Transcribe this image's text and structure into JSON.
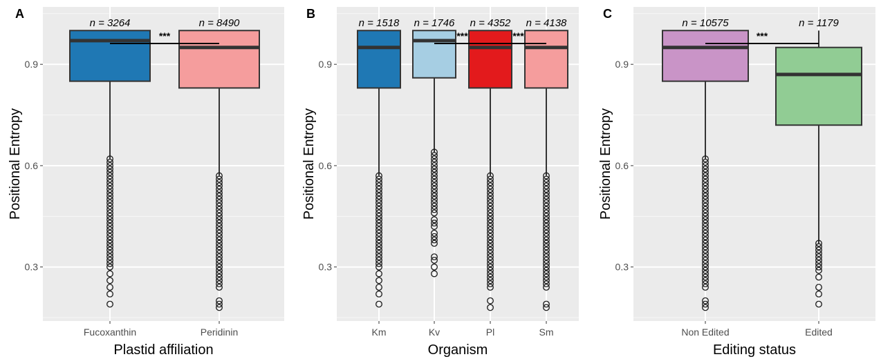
{
  "chart_data": [
    {
      "type": "box",
      "panel": "A",
      "xlabel": "Plastid affiliation",
      "ylabel": "Positional Entropy",
      "ylim": [
        0.14,
        1.07
      ],
      "yticks": [
        0.3,
        0.6,
        0.9
      ],
      "ytick_labels": [
        "0.3",
        "0.6",
        "0.9"
      ],
      "categories": [
        "Fucoxanthin",
        "Peridinin"
      ],
      "n_labels": [
        "n = 3264",
        "n = 8490"
      ],
      "colors": [
        "#1f78b4",
        "#f59d9d"
      ],
      "boxes": [
        {
          "q1": 0.85,
          "median": 0.97,
          "q3": 1.0,
          "whisker_low": 0.62,
          "whisker_high": 1.0,
          "outliers": [
            0.19,
            0.22,
            0.24,
            0.26,
            0.28,
            0.3,
            0.31,
            0.32,
            0.33,
            0.34,
            0.35,
            0.36,
            0.37,
            0.38,
            0.39,
            0.4,
            0.41,
            0.42,
            0.43,
            0.44,
            0.45,
            0.46,
            0.47,
            0.48,
            0.49,
            0.5,
            0.51,
            0.52,
            0.53,
            0.54,
            0.55,
            0.56,
            0.57,
            0.58,
            0.59,
            0.6,
            0.61,
            0.62
          ]
        },
        {
          "q1": 0.83,
          "median": 0.95,
          "q3": 1.0,
          "whisker_low": 0.57,
          "whisker_high": 1.0,
          "outliers": [
            0.18,
            0.19,
            0.2,
            0.24,
            0.25,
            0.26,
            0.27,
            0.28,
            0.29,
            0.3,
            0.31,
            0.32,
            0.33,
            0.34,
            0.35,
            0.36,
            0.37,
            0.38,
            0.39,
            0.4,
            0.41,
            0.42,
            0.43,
            0.44,
            0.45,
            0.46,
            0.47,
            0.48,
            0.49,
            0.5,
            0.51,
            0.52,
            0.53,
            0.54,
            0.55,
            0.56,
            0.57
          ]
        }
      ],
      "significance": [
        {
          "from": 0,
          "to": 1,
          "label": "***"
        }
      ]
    },
    {
      "type": "box",
      "panel": "B",
      "xlabel": "Organism",
      "ylabel": "Positional Entropy",
      "ylim": [
        0.14,
        1.07
      ],
      "yticks": [
        0.3,
        0.6,
        0.9
      ],
      "ytick_labels": [
        "0.3",
        "0.6",
        "0.9"
      ],
      "categories": [
        "Km",
        "Kv",
        "Pl",
        "Sm"
      ],
      "n_labels": [
        "n = 1518",
        "n = 1746",
        "n = 4352",
        "n = 4138"
      ],
      "colors": [
        "#1f78b4",
        "#a6cee3",
        "#e31a1c",
        "#f59d9d"
      ],
      "boxes": [
        {
          "q1": 0.83,
          "median": 0.95,
          "q3": 1.0,
          "whisker_low": 0.57,
          "whisker_high": 1.0,
          "outliers": [
            0.19,
            0.22,
            0.24,
            0.26,
            0.28,
            0.3,
            0.31,
            0.32,
            0.33,
            0.34,
            0.35,
            0.36,
            0.37,
            0.38,
            0.39,
            0.4,
            0.41,
            0.42,
            0.43,
            0.44,
            0.45,
            0.46,
            0.47,
            0.48,
            0.49,
            0.5,
            0.51,
            0.52,
            0.53,
            0.54,
            0.55,
            0.56,
            0.57
          ]
        },
        {
          "q1": 0.86,
          "median": 0.97,
          "q3": 1.0,
          "whisker_low": 0.64,
          "whisker_high": 1.0,
          "outliers": [
            0.28,
            0.3,
            0.32,
            0.33,
            0.37,
            0.38,
            0.39,
            0.4,
            0.42,
            0.43,
            0.44,
            0.46,
            0.47,
            0.48,
            0.49,
            0.5,
            0.51,
            0.52,
            0.53,
            0.54,
            0.55,
            0.56,
            0.57,
            0.58,
            0.59,
            0.6,
            0.61,
            0.62,
            0.63,
            0.64
          ]
        },
        {
          "q1": 0.83,
          "median": 0.95,
          "q3": 1.0,
          "whisker_low": 0.57,
          "whisker_high": 1.0,
          "outliers": [
            0.18,
            0.2,
            0.24,
            0.25,
            0.26,
            0.27,
            0.28,
            0.29,
            0.3,
            0.31,
            0.32,
            0.33,
            0.34,
            0.35,
            0.36,
            0.37,
            0.38,
            0.39,
            0.4,
            0.41,
            0.42,
            0.43,
            0.44,
            0.45,
            0.46,
            0.47,
            0.48,
            0.49,
            0.5,
            0.51,
            0.52,
            0.53,
            0.54,
            0.55,
            0.56,
            0.57
          ]
        },
        {
          "q1": 0.83,
          "median": 0.95,
          "q3": 1.0,
          "whisker_low": 0.57,
          "whisker_high": 1.0,
          "outliers": [
            0.18,
            0.19,
            0.24,
            0.25,
            0.26,
            0.27,
            0.28,
            0.29,
            0.3,
            0.31,
            0.32,
            0.33,
            0.34,
            0.35,
            0.36,
            0.37,
            0.38,
            0.39,
            0.4,
            0.41,
            0.42,
            0.43,
            0.44,
            0.45,
            0.46,
            0.47,
            0.48,
            0.49,
            0.5,
            0.51,
            0.52,
            0.53,
            0.54,
            0.55,
            0.56,
            0.57
          ]
        }
      ],
      "significance": [
        {
          "from": 1,
          "to": 2,
          "label": "***"
        },
        {
          "from": 2,
          "to": 3,
          "label": "***"
        }
      ]
    },
    {
      "type": "box",
      "panel": "C",
      "xlabel": "Editing status",
      "ylabel": "Positional Entropy",
      "ylim": [
        0.14,
        1.07
      ],
      "yticks": [
        0.3,
        0.6,
        0.9
      ],
      "ytick_labels": [
        "0.3",
        "0.6",
        "0.9"
      ],
      "categories": [
        "Non Edited",
        "Edited"
      ],
      "n_labels": [
        "n = 10575",
        "n = 1179"
      ],
      "colors": [
        "#c994c7",
        "#91cc94"
      ],
      "boxes": [
        {
          "q1": 0.85,
          "median": 0.95,
          "q3": 1.0,
          "whisker_low": 0.62,
          "whisker_high": 1.0,
          "outliers": [
            0.18,
            0.19,
            0.2,
            0.24,
            0.25,
            0.26,
            0.27,
            0.28,
            0.29,
            0.3,
            0.31,
            0.32,
            0.33,
            0.34,
            0.35,
            0.36,
            0.37,
            0.38,
            0.39,
            0.4,
            0.41,
            0.42,
            0.43,
            0.44,
            0.45,
            0.46,
            0.47,
            0.48,
            0.49,
            0.5,
            0.51,
            0.52,
            0.53,
            0.54,
            0.55,
            0.56,
            0.57,
            0.58,
            0.59,
            0.6,
            0.61,
            0.62
          ]
        },
        {
          "q1": 0.72,
          "median": 0.87,
          "q3": 0.95,
          "whisker_low": 0.37,
          "whisker_high": 1.0,
          "outliers": [
            0.19,
            0.22,
            0.24,
            0.27,
            0.29,
            0.3,
            0.31,
            0.32,
            0.33,
            0.34,
            0.35,
            0.36,
            0.37
          ]
        }
      ],
      "significance": [
        {
          "from": 0,
          "to": 1,
          "label": "***"
        }
      ]
    }
  ]
}
